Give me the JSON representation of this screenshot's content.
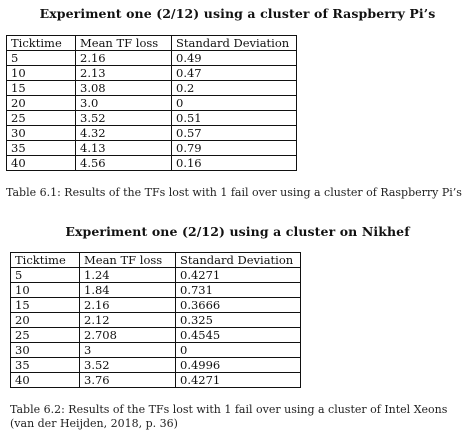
{
  "experiment1": {
    "heading": "Experiment one (2/12) using a cluster of Raspberry Pi’s",
    "columns": [
      "Ticktime",
      "Mean TF loss",
      "Standard Deviation"
    ],
    "rows": [
      [
        "5",
        "2.16",
        "0.49"
      ],
      [
        "10",
        "2.13",
        "0.47"
      ],
      [
        "15",
        "3.08",
        "0.2"
      ],
      [
        "20",
        "3.0",
        "0"
      ],
      [
        "25",
        "3.52",
        "0.51"
      ],
      [
        "30",
        "4.32",
        "0.57"
      ],
      [
        "35",
        "4.13",
        "0.79"
      ],
      [
        "40",
        "4.56",
        "0.16"
      ]
    ],
    "caption": "Table 6.1: Results of the TFs lost with 1 fail over using a cluster of Raspberry Pi’s"
  },
  "experiment2": {
    "heading": "Experiment one (2/12) using a cluster on Nikhef",
    "columns": [
      "Ticktime",
      "Mean TF loss",
      "Standard Deviation"
    ],
    "rows": [
      [
        "5",
        "1.24",
        "0.4271"
      ],
      [
        "10",
        "1.84",
        "0.731"
      ],
      [
        "15",
        "2.16",
        "0.3666"
      ],
      [
        "20",
        "2.12",
        "0.325"
      ],
      [
        "25",
        "2.708",
        "0.4545"
      ],
      [
        "30",
        "3",
        "0"
      ],
      [
        "35",
        "3.52",
        "0.4996"
      ],
      [
        "40",
        "3.76",
        "0.4271"
      ]
    ],
    "caption": "Table 6.2: Results of the TFs lost with 1 fail over using a cluster of Intel Xeons (van der Heijden, 2018, p. 36)"
  }
}
